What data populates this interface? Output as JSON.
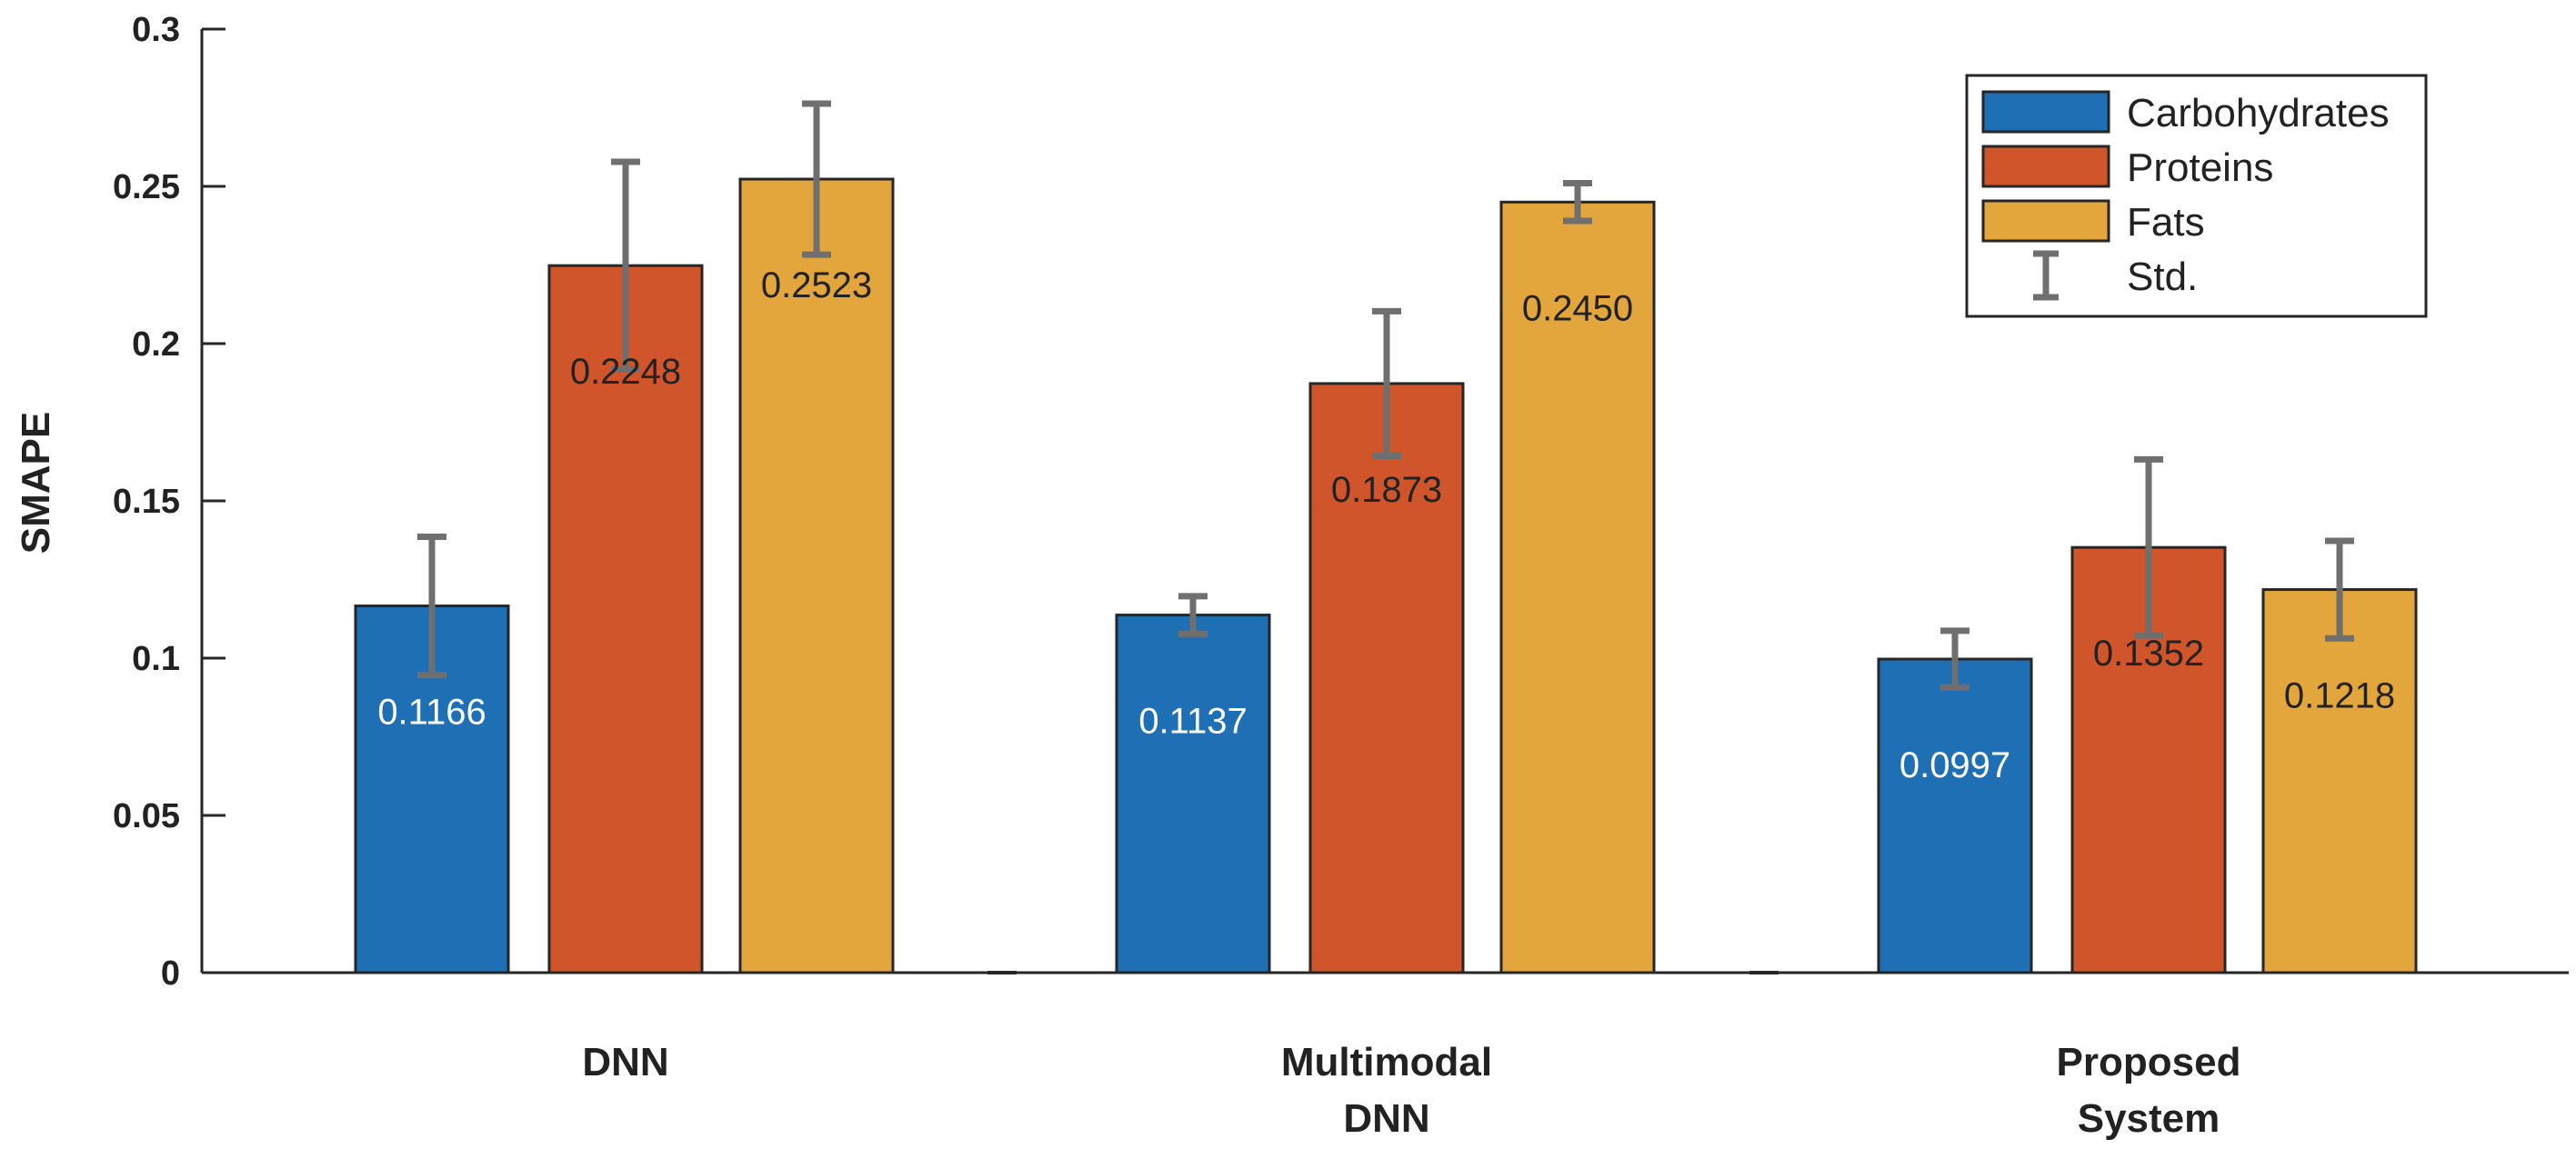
{
  "chart_data": {
    "type": "bar",
    "title": "",
    "xlabel": "",
    "ylabel": "SMAPE",
    "ylim": [
      0,
      0.3
    ],
    "yticks": [
      "0",
      "0.05",
      "0.1",
      "0.15",
      "0.2",
      "0.25",
      "0.3"
    ],
    "categories": [
      [
        "DNN"
      ],
      [
        "Multimodal",
        "DNN"
      ],
      [
        "Proposed",
        "System"
      ]
    ],
    "series": [
      {
        "name": "Carbohydrates",
        "color": "#1f6fb4",
        "label_color": "#ffffff",
        "values": [
          0.1166,
          0.1137,
          0.0997
        ],
        "labels": [
          "0.1166",
          "0.1137",
          "0.0997"
        ],
        "err_low": [
          0.0946,
          0.1077,
          0.0907
        ],
        "err_high": [
          0.1386,
          0.1197,
          0.1087
        ]
      },
      {
        "name": "Proteins",
        "color": "#d0552b",
        "label_color": "#222222",
        "values": [
          0.2248,
          0.1873,
          0.1352
        ],
        "labels": [
          "0.2248",
          "0.1873",
          "0.1352"
        ],
        "err_low": [
          0.1918,
          0.1643,
          0.1072
        ],
        "err_high": [
          0.2578,
          0.2103,
          0.1632
        ]
      },
      {
        "name": "Fats",
        "color": "#e3a63c",
        "label_color": "#222222",
        "values": [
          0.2523,
          0.245,
          0.1218
        ],
        "labels": [
          "0.2523",
          "0.2450",
          "0.1218"
        ],
        "err_low": [
          0.2283,
          0.239,
          0.1063
        ],
        "err_high": [
          0.2763,
          0.251,
          0.1373
        ]
      }
    ],
    "error_bar_label": "Std.",
    "legend_position": "top-right",
    "grid": false
  }
}
